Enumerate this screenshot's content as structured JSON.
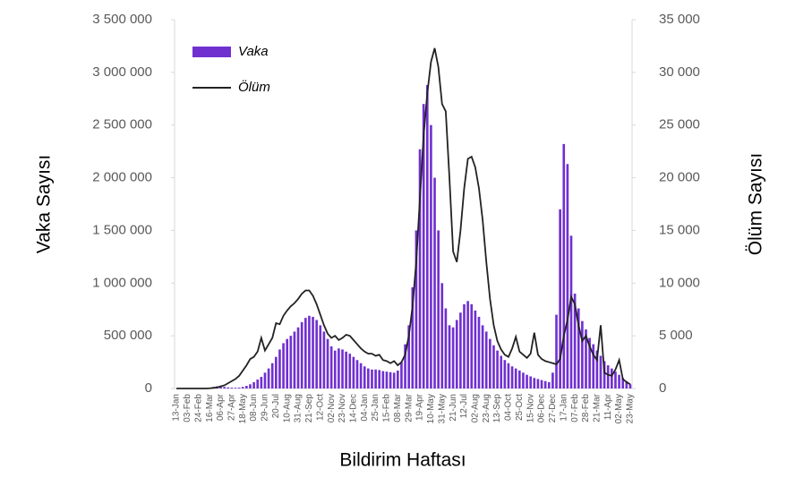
{
  "chart_data": {
    "type": "bar-line",
    "x_label": "Bildirim Haftası",
    "y_label": "Vaka Sayısı",
    "y2_label": "Ölüm Sayısı",
    "categories": [
      "13-Jan",
      null,
      null,
      "03-Feb",
      null,
      null,
      "24-Feb",
      null,
      null,
      "16-Mar",
      null,
      null,
      "06-Apr",
      null,
      null,
      "27-Apr",
      null,
      null,
      "18-May",
      null,
      null,
      "08-Jun",
      null,
      null,
      "29-Jun",
      null,
      null,
      "20-Jul",
      null,
      null,
      "10-Aug",
      null,
      null,
      "31-Aug",
      null,
      null,
      "21-Sep",
      null,
      null,
      "12-Oct",
      null,
      null,
      "02-Nov",
      null,
      null,
      "23-Nov",
      null,
      null,
      "14-Dec",
      null,
      null,
      "04-Jan",
      null,
      null,
      "25-Jan",
      null,
      null,
      "15-Feb",
      null,
      null,
      "08-Mar",
      null,
      null,
      "29-Mar",
      null,
      null,
      "19-Apr",
      null,
      null,
      "10-May",
      null,
      null,
      "31-May",
      null,
      null,
      "21-Jun",
      null,
      null,
      "12-Jul",
      null,
      null,
      "02-Aug",
      null,
      null,
      "23-Aug",
      null,
      null,
      "13-Sep",
      null,
      null,
      "04-Oct",
      null,
      null,
      "25-Oct",
      null,
      null,
      "15-Nov",
      null,
      null,
      "06-Dec",
      null,
      null,
      "27-Dec",
      null,
      null,
      "17-Jan",
      null,
      null,
      "07-Feb",
      null,
      null,
      "28-Feb",
      null,
      null,
      "21-Mar",
      null,
      null,
      "11-Apr",
      null,
      null,
      "02-May",
      null,
      null,
      "23-May"
    ],
    "series": [
      {
        "name": "Vaka",
        "color": "#7030d0",
        "values": [
          0,
          0,
          0,
          0,
          0,
          0,
          0,
          0,
          0,
          2000,
          15000,
          20000,
          18000,
          15000,
          10000,
          8000,
          7000,
          8000,
          15000,
          25000,
          40000,
          60000,
          85000,
          110000,
          150000,
          190000,
          240000,
          300000,
          370000,
          430000,
          470000,
          500000,
          540000,
          580000,
          630000,
          670000,
          690000,
          680000,
          650000,
          600000,
          540000,
          470000,
          400000,
          360000,
          380000,
          370000,
          350000,
          330000,
          300000,
          270000,
          240000,
          210000,
          190000,
          180000,
          180000,
          175000,
          165000,
          160000,
          155000,
          150000,
          170000,
          250000,
          420000,
          600000,
          960000,
          1500000,
          2270000,
          2700000,
          2880000,
          2500000,
          2000000,
          1500000,
          1000000,
          760000,
          600000,
          580000,
          650000,
          720000,
          800000,
          830000,
          800000,
          740000,
          680000,
          600000,
          540000,
          470000,
          410000,
          360000,
          310000,
          270000,
          240000,
          210000,
          190000,
          170000,
          150000,
          130000,
          115000,
          100000,
          90000,
          80000,
          70000,
          60000,
          150000,
          700000,
          1700000,
          2320000,
          2130000,
          1450000,
          900000,
          760000,
          640000,
          560000,
          480000,
          420000,
          360000,
          310000,
          260000,
          220000,
          190000,
          160000,
          130000,
          100000,
          70000,
          40000
        ]
      },
      {
        "name": "Ölüm",
        "color": "#222222",
        "axis": "y2",
        "values": [
          0,
          0,
          0,
          0,
          0,
          0,
          0,
          0,
          0,
          20,
          50,
          100,
          200,
          300,
          500,
          700,
          900,
          1200,
          1700,
          2200,
          2800,
          3000,
          3500,
          4800,
          3600,
          4200,
          4800,
          6200,
          6100,
          6900,
          7400,
          7800,
          8100,
          8500,
          9000,
          9300,
          9300,
          8800,
          8000,
          7000,
          6000,
          5200,
          4800,
          5000,
          4600,
          4800,
          5100,
          5000,
          4600,
          4200,
          3800,
          3500,
          3300,
          3300,
          3100,
          3200,
          2700,
          2600,
          2400,
          2600,
          2200,
          2500,
          3200,
          5000,
          7800,
          12000,
          18000,
          24000,
          28000,
          31000,
          32300,
          30500,
          27000,
          26300,
          20000,
          13000,
          12000,
          15000,
          19000,
          21800,
          22000,
          21000,
          19000,
          16000,
          12000,
          8500,
          6000,
          4500,
          3700,
          3200,
          3000,
          3800,
          4900,
          3500,
          3200,
          2900,
          3300,
          5300,
          3200,
          2800,
          2600,
          2500,
          2400,
          2300,
          2800,
          5000,
          6500,
          8700,
          8000,
          6000,
          4500,
          5000,
          4000,
          3200,
          2700,
          6000,
          1500,
          1300,
          1200,
          1800,
          2700,
          900,
          600,
          400
        ]
      }
    ],
    "ylim": [
      0,
      3500000
    ],
    "yticks": [
      0,
      {
        "value": 500000,
        "label": "500 000"
      },
      {
        "value": 1000000,
        "label": "1 000 000"
      },
      {
        "value": 1500000,
        "label": "1 500 000"
      },
      {
        "value": 2000000,
        "label": "2 000 000"
      },
      {
        "value": 2500000,
        "label": "2 500 000"
      },
      {
        "value": 3000000,
        "label": "3 000 000"
      },
      {
        "value": 3500000,
        "label": "3 500 000"
      }
    ],
    "y2lim": [
      0,
      35000
    ],
    "y2ticks": [
      0,
      {
        "value": 5000,
        "label": "5 000"
      },
      {
        "value": 10000,
        "label": "10 000"
      },
      {
        "value": 15000,
        "label": "15 000"
      },
      {
        "value": 20000,
        "label": "20 000"
      },
      {
        "value": 25000,
        "label": "25 000"
      },
      {
        "value": 30000,
        "label": "30 000"
      },
      {
        "value": 35000,
        "label": "35 000"
      }
    ],
    "grid": false,
    "legend": "top-left"
  }
}
